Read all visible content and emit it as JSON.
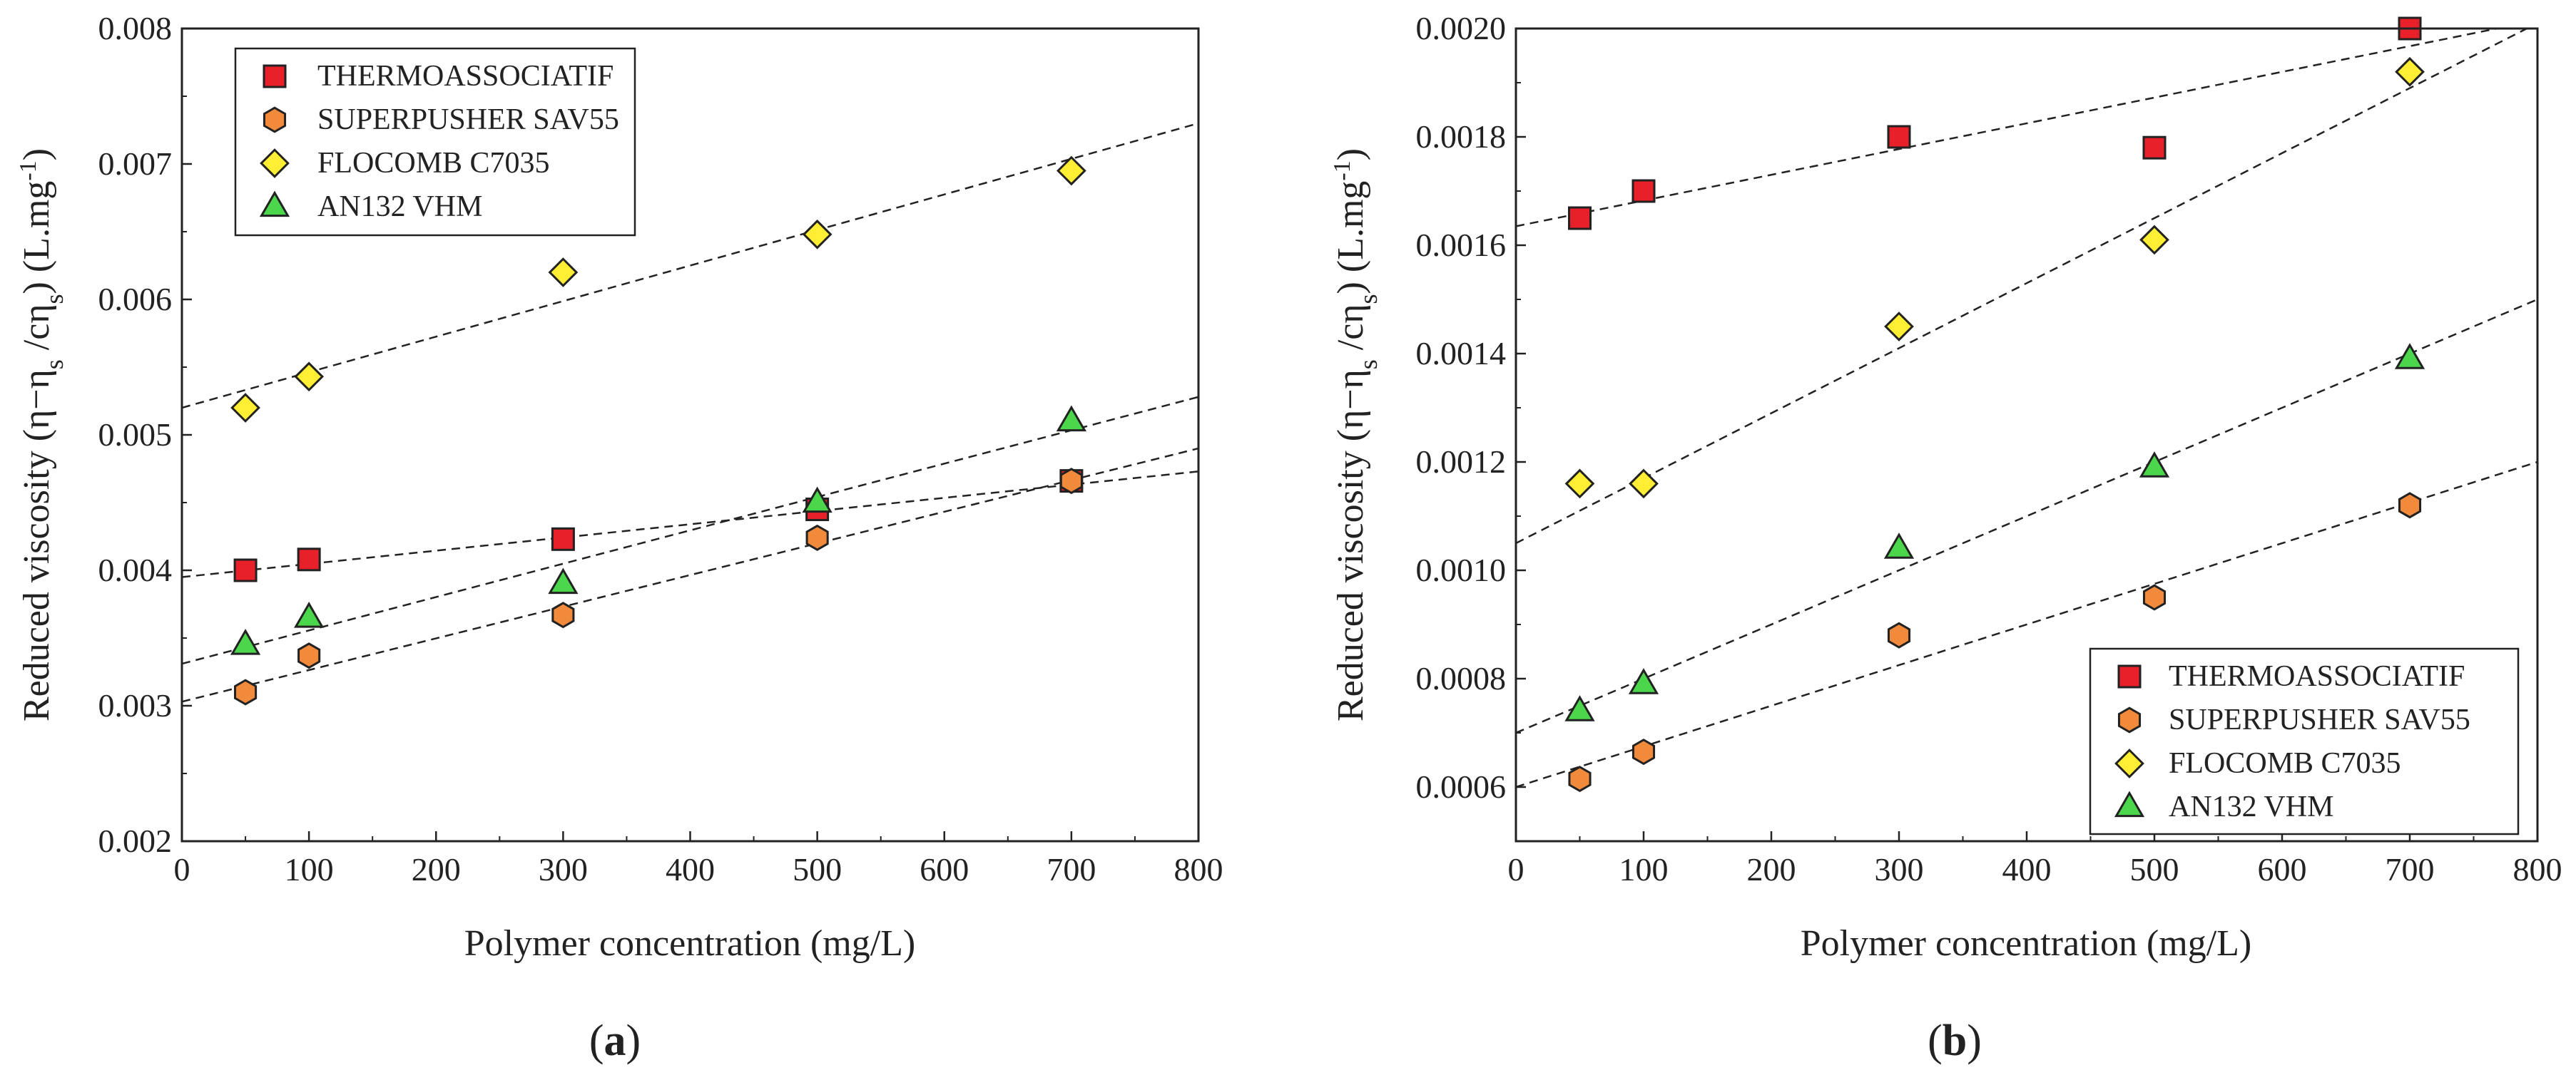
{
  "chart_data": [
    {
      "type": "scatter",
      "panel": "a",
      "caption": {
        "open": "(",
        "letter": "a",
        "close": ")"
      },
      "xlabel": "Polymer concentration (mg/L)",
      "ylabel": {
        "main": "Reduced viscosity (η−η",
        "sub1": "s",
        "mid": " /cη",
        "sub2": "s",
        "close": ")  (L.mg",
        "sup": "-1",
        "end": ")"
      },
      "xlim": [
        0,
        800
      ],
      "ylim": [
        0.002,
        0.008
      ],
      "xticks": [
        0,
        100,
        200,
        300,
        400,
        500,
        600,
        700,
        800
      ],
      "xtick_labels": [
        "0",
        "100",
        "200",
        "300",
        "400",
        "500",
        "600",
        "700",
        "800"
      ],
      "yticks": [
        0.002,
        0.003,
        0.004,
        0.005,
        0.006,
        0.007,
        0.008
      ],
      "ytick_labels": [
        "0.002",
        "0.003",
        "0.004",
        "0.005",
        "0.006",
        "0.007",
        "0.008"
      ],
      "legend_position": "top-left",
      "series": [
        {
          "name": "THERMOASSOCIATIF",
          "marker": "square",
          "color": "#e8202a",
          "x": [
            50,
            100,
            300,
            500,
            700
          ],
          "y": [
            0.004,
            0.00408,
            0.00423,
            0.00445,
            0.00466
          ],
          "fit": [
            [
              0,
              0.00395
            ],
            [
              800,
              0.00473
            ]
          ]
        },
        {
          "name": "SUPERPUSHER SAV55",
          "marker": "hexagon",
          "color": "#f28a3c",
          "x": [
            50,
            100,
            300,
            500,
            700
          ],
          "y": [
            0.0031,
            0.00337,
            0.00367,
            0.00424,
            0.00466
          ],
          "fit": [
            [
              0,
              0.00303
            ],
            [
              800,
              0.0049
            ]
          ]
        },
        {
          "name": "FLOCOMB C7035",
          "marker": "diamond",
          "color": "#ffee33",
          "x": [
            50,
            100,
            300,
            500,
            700
          ],
          "y": [
            0.0052,
            0.00543,
            0.0062,
            0.00648,
            0.00695
          ],
          "fit": [
            [
              0,
              0.0052
            ],
            [
              800,
              0.0073
            ]
          ]
        },
        {
          "name": "AN132 VHM",
          "marker": "triangle",
          "color": "#4cd64c",
          "x": [
            50,
            100,
            300,
            500,
            700
          ],
          "y": [
            0.00345,
            0.00365,
            0.0039,
            0.0045,
            0.0051
          ],
          "fit": [
            [
              0,
              0.00331
            ],
            [
              800,
              0.00528
            ]
          ]
        }
      ]
    },
    {
      "type": "scatter",
      "panel": "b",
      "caption": {
        "open": "(",
        "letter": "b",
        "close": ")"
      },
      "xlabel": "Polymer concentration (mg/L)",
      "ylabel": {
        "main": "Reduced viscosity (η−η",
        "sub1": "s",
        "mid": " /cη",
        "sub2": "s",
        "close": ")  (L.mg",
        "sup": "-1",
        "end": ")"
      },
      "xlim": [
        0,
        800
      ],
      "ylim": [
        0.0005,
        0.002
      ],
      "xticks": [
        0,
        100,
        200,
        300,
        400,
        500,
        600,
        700,
        800
      ],
      "xtick_labels": [
        "0",
        "100",
        "200",
        "300",
        "400",
        "500",
        "600",
        "700",
        "800"
      ],
      "yticks": [
        0.0006,
        0.0008,
        0.001,
        0.0012,
        0.0014,
        0.0016,
        0.0018,
        0.002
      ],
      "ytick_labels": [
        "0.0006",
        "0.0008",
        "0.0010",
        "0.0012",
        "0.0014",
        "0.0016",
        "0.0018",
        "0.0020"
      ],
      "legend_position": "bottom-right",
      "series": [
        {
          "name": "THERMOASSOCIATIF",
          "marker": "square",
          "color": "#e8202a",
          "x": [
            50,
            100,
            300,
            500,
            700
          ],
          "y": [
            0.00165,
            0.0017,
            0.0018,
            0.00178,
            0.002
          ],
          "fit": [
            [
              0,
              0.001635
            ],
            [
              800,
              0.002015
            ]
          ]
        },
        {
          "name": "SUPERPUSHER SAV55",
          "marker": "hexagon",
          "color": "#f28a3c",
          "x": [
            50,
            100,
            300,
            500,
            700
          ],
          "y": [
            0.000615,
            0.000665,
            0.00088,
            0.00095,
            0.00112
          ],
          "fit": [
            [
              0,
              0.0006
            ],
            [
              800,
              0.0012
            ]
          ]
        },
        {
          "name": "FLOCOMB C7035",
          "marker": "diamond",
          "color": "#ffee33",
          "x": [
            50,
            100,
            300,
            500,
            700
          ],
          "y": [
            0.00116,
            0.00116,
            0.00145,
            0.00161,
            0.00192
          ],
          "fit": [
            [
              0,
              0.00105
            ],
            [
              800,
              0.00201
            ]
          ]
        },
        {
          "name": "AN132 VHM",
          "marker": "triangle",
          "color": "#4cd64c",
          "x": [
            50,
            100,
            300,
            500,
            700
          ],
          "y": [
            0.00074,
            0.00079,
            0.00104,
            0.00119,
            0.00139
          ],
          "fit": [
            [
              0,
              0.0007
            ],
            [
              800,
              0.0015
            ]
          ]
        }
      ]
    }
  ]
}
